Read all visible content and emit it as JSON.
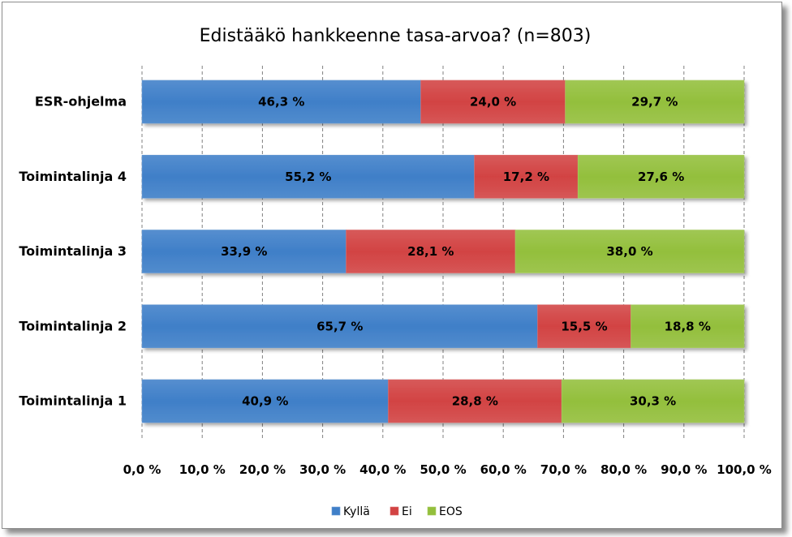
{
  "chart_data": {
    "type": "bar",
    "orientation": "horizontal",
    "stacked": "percent",
    "title": "Edistääkö hankkeenne tasa-arvoa? (n=803)",
    "categories": [
      "ESR-ohjelma",
      "Toimintalinja 4",
      "Toimintalinja 3",
      "Toimintalinja 2",
      "Toimintalinja 1"
    ],
    "series": [
      {
        "name": "Kyllä",
        "color": "#3f7fc8",
        "values": [
          46.3,
          55.2,
          33.9,
          65.7,
          40.9
        ],
        "labels": [
          "46,3 %",
          "55,2 %",
          "33,9 %",
          "65,7 %",
          "40,9 %"
        ]
      },
      {
        "name": "Ei",
        "color": "#d24343",
        "values": [
          24.0,
          17.2,
          28.1,
          15.5,
          28.8
        ],
        "labels": [
          "24,0 %",
          "17,2 %",
          "28,1 %",
          "15,5 %",
          "28,8 %"
        ]
      },
      {
        "name": "EOS",
        "color": "#93bf3c",
        "values": [
          29.7,
          27.6,
          38.0,
          18.8,
          30.3
        ],
        "labels": [
          "29,7 %",
          "27,6 %",
          "38,0 %",
          "18,8 %",
          "30,3 %"
        ]
      }
    ],
    "xlim": [
      0,
      100
    ],
    "xticks": [
      "0,0 %",
      "10,0 %",
      "20,0 %",
      "30,0 %",
      "40,0 %",
      "50,0 %",
      "60,0 %",
      "70,0 %",
      "80,0 %",
      "90,0 %",
      "100,0 %"
    ],
    "grid": "vertical dashed",
    "legend_position": "bottom"
  }
}
